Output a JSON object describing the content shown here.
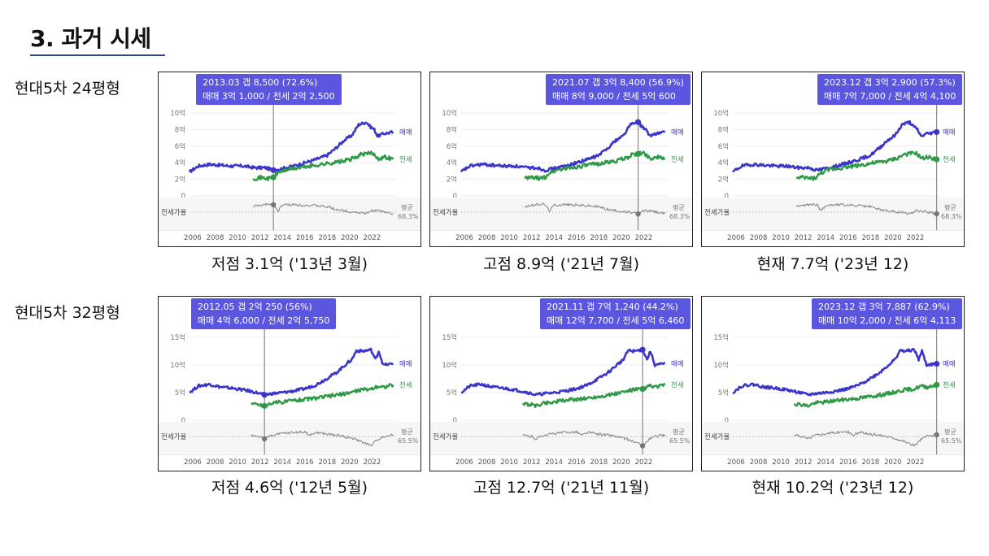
{
  "title": "3. 과거 시세",
  "colors": {
    "sale": "#3b36c9",
    "jeonse": "#2e9a45",
    "ratio": "#8a8a8a",
    "tooltip": "#5b56e0",
    "accent": "#2b4a8a"
  },
  "rows": [
    {
      "label": "현대5차 24평형"
    },
    {
      "label": "현대5차 32평형"
    }
  ],
  "panels": [
    {
      "caption": "저점 3.1억 ('13년 3월)",
      "tooltip": {
        "line1": "2013.03  갭 8,500 (72.6%)",
        "line2": "매매 3억 1,000 / 전세 2억 2,500"
      }
    },
    {
      "caption": "고점 8.9억 ('21년 7월)",
      "tooltip": {
        "line1": "2021.07  갭 3억 8,400 (56.9%)",
        "line2": "매매 8억 9,000 / 전세 5억 600"
      }
    },
    {
      "caption": "현재 7.7억 ('23년 12)",
      "tooltip": {
        "line1": "2023.12  갭 3억 2,900 (57.3%)",
        "line2": "매매 7억 7,000 / 전세 4억 4,100"
      }
    },
    {
      "caption": "저점 4.6억 ('12년 5월)",
      "tooltip": {
        "line1": "2012.05  갭 2억 250 (56%)",
        "line2": "매매 4억 6,000 / 전세 2억 5,750"
      }
    },
    {
      "caption": "고점 12.7억 ('21년 11월)",
      "tooltip": {
        "line1": "2021.11  갭 7억 1,240 (44.2%)",
        "line2": "매매 12억 7,700 / 전세 5억 6,460"
      }
    },
    {
      "caption": "현재 10.2억 ('23년 12)",
      "tooltip": {
        "line1": "2023.12  갭 3억 7,887 (62.9%)",
        "line2": "매매 10억 2,000 / 전세 6억 4,113"
      }
    }
  ],
  "chart_data": [
    {
      "type": "line",
      "unit": "억",
      "x_ticks": [
        "2006",
        "2008",
        "2010",
        "2012",
        "2014",
        "2016",
        "2018",
        "2020",
        "2022"
      ],
      "y_ticks": [
        "10억",
        "8억",
        "6억",
        "4억",
        "2억",
        "0"
      ],
      "ylim": [
        0,
        10
      ],
      "series_labels": {
        "sale": "매매",
        "jeonse": "전세"
      },
      "ratio_label": "전세가율",
      "avg_label": "평균",
      "avg_ratio": "68.3%",
      "sale": [
        [
          2005.7,
          2.9
        ],
        [
          2006.5,
          3.6
        ],
        [
          2007.5,
          3.8
        ],
        [
          2008.5,
          3.7
        ],
        [
          2009.5,
          3.6
        ],
        [
          2010.5,
          3.6
        ],
        [
          2011.5,
          3.4
        ],
        [
          2012.5,
          3.4
        ],
        [
          2013.2,
          3.1
        ],
        [
          2014.0,
          3.3
        ],
        [
          2015.0,
          3.6
        ],
        [
          2016.0,
          4.0
        ],
        [
          2017.0,
          4.4
        ],
        [
          2018.0,
          4.9
        ],
        [
          2018.8,
          5.8
        ],
        [
          2019.5,
          6.7
        ],
        [
          2020.2,
          7.3
        ],
        [
          2020.8,
          8.6
        ],
        [
          2021.5,
          8.9
        ],
        [
          2021.8,
          8.4
        ],
        [
          2022.2,
          8.0
        ],
        [
          2022.5,
          7.2
        ],
        [
          2023.0,
          7.5
        ],
        [
          2023.9,
          7.7
        ]
      ],
      "jeonse": [
        [
          2011.4,
          2.1
        ],
        [
          2012.0,
          2.2
        ],
        [
          2012.8,
          2.1
        ],
        [
          2013.2,
          2.25
        ],
        [
          2013.6,
          2.8
        ],
        [
          2014.5,
          3.2
        ],
        [
          2015.5,
          3.4
        ],
        [
          2016.5,
          3.6
        ],
        [
          2017.5,
          3.8
        ],
        [
          2018.5,
          4.0
        ],
        [
          2019.5,
          4.2
        ],
        [
          2020.5,
          4.6
        ],
        [
          2021.0,
          5.0
        ],
        [
          2021.5,
          5.06
        ],
        [
          2022.0,
          5.2
        ],
        [
          2022.6,
          4.5
        ],
        [
          2023.2,
          4.7
        ],
        [
          2023.9,
          4.41
        ]
      ],
      "ratio": [
        [
          2011.4,
          70
        ],
        [
          2012.3,
          72
        ],
        [
          2012.9,
          74
        ],
        [
          2013.2,
          72.6
        ],
        [
          2013.6,
          62
        ],
        [
          2014.0,
          72
        ],
        [
          2015.0,
          73
        ],
        [
          2016.0,
          72
        ],
        [
          2017.0,
          71
        ],
        [
          2018.0,
          69
        ],
        [
          2019.0,
          64
        ],
        [
          2020.0,
          61
        ],
        [
          2021.0,
          59
        ],
        [
          2021.5,
          56.9
        ],
        [
          2022.0,
          63
        ],
        [
          2022.6,
          62
        ],
        [
          2023.2,
          60
        ],
        [
          2023.9,
          57.3
        ]
      ]
    },
    {
      "type": "line",
      "unit": "억",
      "x_ticks": [
        "2006",
        "2008",
        "2010",
        "2012",
        "2014",
        "2016",
        "2018",
        "2020",
        "2022"
      ],
      "y_ticks": [
        "15억",
        "10억",
        "5억",
        "0"
      ],
      "ylim": [
        0,
        15
      ],
      "series_labels": {
        "sale": "매매",
        "jeonse": "전세"
      },
      "ratio_label": "전세가율",
      "avg_label": "평균",
      "avg_ratio": "65.5%",
      "sale": [
        [
          2005.7,
          5.0
        ],
        [
          2006.5,
          6.2
        ],
        [
          2007.5,
          6.5
        ],
        [
          2008.5,
          6.0
        ],
        [
          2009.5,
          5.8
        ],
        [
          2010.5,
          5.5
        ],
        [
          2011.5,
          5.1
        ],
        [
          2012.4,
          4.6
        ],
        [
          2013.0,
          4.8
        ],
        [
          2014.0,
          5.0
        ],
        [
          2015.0,
          5.3
        ],
        [
          2016.0,
          5.7
        ],
        [
          2017.0,
          6.4
        ],
        [
          2018.0,
          7.6
        ],
        [
          2018.8,
          8.6
        ],
        [
          2019.6,
          10.0
        ],
        [
          2020.2,
          11.0
        ],
        [
          2020.6,
          12.6
        ],
        [
          2021.2,
          12.5
        ],
        [
          2021.9,
          12.77
        ],
        [
          2022.3,
          11.0
        ],
        [
          2022.6,
          12.5
        ],
        [
          2023.0,
          10.0
        ],
        [
          2023.9,
          10.2
        ]
      ],
      "jeonse": [
        [
          2011.2,
          3.0
        ],
        [
          2012.0,
          2.8
        ],
        [
          2012.4,
          2.6
        ],
        [
          2013.0,
          3.1
        ],
        [
          2014.0,
          3.3
        ],
        [
          2015.0,
          3.6
        ],
        [
          2016.0,
          3.8
        ],
        [
          2017.0,
          4.0
        ],
        [
          2018.0,
          4.3
        ],
        [
          2019.0,
          4.6
        ],
        [
          2020.0,
          5.0
        ],
        [
          2021.0,
          5.5
        ],
        [
          2021.9,
          5.65
        ],
        [
          2022.5,
          6.2
        ],
        [
          2023.0,
          6.0
        ],
        [
          2023.9,
          6.41
        ]
      ],
      "ratio": [
        [
          2011.2,
          62
        ],
        [
          2012.0,
          60
        ],
        [
          2012.4,
          56
        ],
        [
          2013.0,
          62
        ],
        [
          2014.0,
          65
        ],
        [
          2015.0,
          67
        ],
        [
          2016.0,
          68
        ],
        [
          2016.5,
          62
        ],
        [
          2017.0,
          67
        ],
        [
          2018.0,
          64
        ],
        [
          2019.0,
          62
        ],
        [
          2020.0,
          58
        ],
        [
          2021.0,
          52
        ],
        [
          2021.9,
          44.2
        ],
        [
          2022.5,
          55
        ],
        [
          2023.0,
          60
        ],
        [
          2023.9,
          62.9
        ]
      ]
    }
  ]
}
